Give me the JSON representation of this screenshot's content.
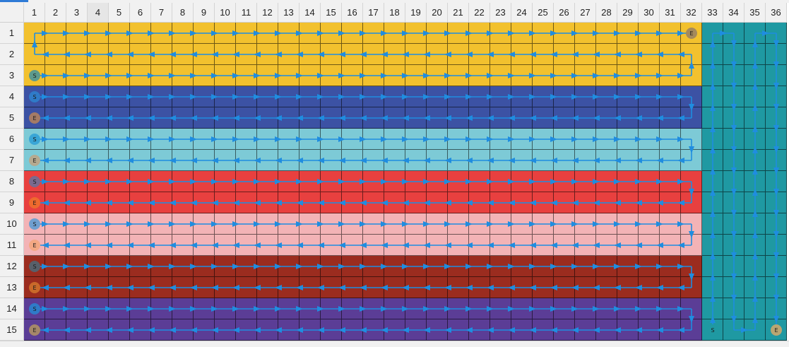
{
  "columns": [
    "1",
    "2",
    "3",
    "4",
    "5",
    "6",
    "7",
    "8",
    "9",
    "10",
    "11",
    "12",
    "13",
    "14",
    "15",
    "16",
    "17",
    "18",
    "19",
    "20",
    "21",
    "22",
    "23",
    "24",
    "25",
    "26",
    "27",
    "28",
    "29",
    "30",
    "31",
    "32",
    "33",
    "34",
    "35",
    "36"
  ],
  "rows": [
    "1",
    "2",
    "3",
    "4",
    "5",
    "6",
    "7",
    "8",
    "9",
    "10",
    "11",
    "12",
    "13",
    "14",
    "15"
  ],
  "selected_column": 4,
  "row_colors": [
    "#f2c12e",
    "#f2c12e",
    "#f2c12e",
    "#3c52a4",
    "#3c52a4",
    "#7dcad6",
    "#7dcad6",
    "#e8403f",
    "#e8403f",
    "#f3b3b6",
    "#f3b3b6",
    "#9b2c1f",
    "#9b2c1f",
    "#5b3d96",
    "#5b3d96"
  ],
  "right_block_color": "#1f99a2",
  "path_color": "#1f8de0",
  "markers": {
    "start_label": "S",
    "end_label": "E",
    "items": [
      {
        "label": "E",
        "row": 1,
        "col": 32,
        "color": "#a58a5c"
      },
      {
        "label": "S",
        "row": 3,
        "col": 1,
        "color": "#5d9a8d"
      },
      {
        "label": "S",
        "row": 4,
        "col": 1,
        "color": "#2f7bc8"
      },
      {
        "label": "E",
        "row": 5,
        "col": 1,
        "color": "#a47b66"
      },
      {
        "label": "S",
        "row": 6,
        "col": 1,
        "color": "#3aa6d6"
      },
      {
        "label": "E",
        "row": 7,
        "col": 1,
        "color": "#b5a98f"
      },
      {
        "label": "S",
        "row": 8,
        "col": 1,
        "color": "#7a6a8e"
      },
      {
        "label": "E",
        "row": 9,
        "col": 1,
        "color": "#ee6a2e"
      },
      {
        "label": "S",
        "row": 10,
        "col": 1,
        "color": "#6f9fd0"
      },
      {
        "label": "E",
        "row": 11,
        "col": 1,
        "color": "#f4a883"
      },
      {
        "label": "S",
        "row": 12,
        "col": 1,
        "color": "#58606a"
      },
      {
        "label": "E",
        "row": 13,
        "col": 1,
        "color": "#c9692a"
      },
      {
        "label": "S",
        "row": 14,
        "col": 1,
        "color": "#2f7bc8"
      },
      {
        "label": "E",
        "row": 15,
        "col": 1,
        "color": "#a5876a"
      },
      {
        "label": "S",
        "row": 15,
        "col": 33,
        "color": "#1f99a2"
      },
      {
        "label": "E",
        "row": 15,
        "col": 36,
        "color": "#b9a672"
      }
    ]
  }
}
